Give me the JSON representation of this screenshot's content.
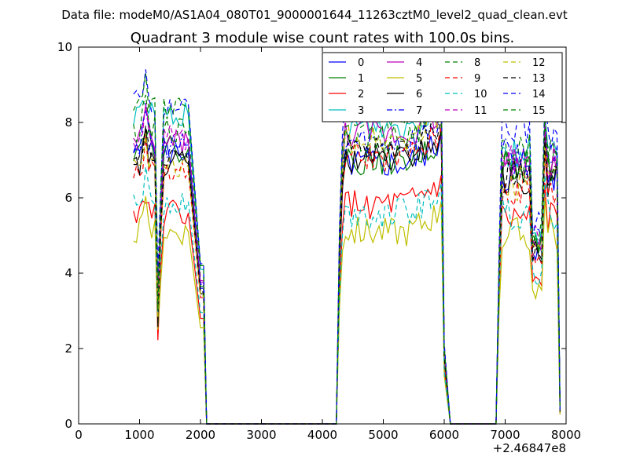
{
  "chart_data": {
    "type": "line",
    "suptitle": "Data file: modeM0/AS1A04_080T01_9000001644_11263cztM0_level2_quad_clean.evt",
    "title": "Quadrant 3 module wise count rates with 100.0s bins.",
    "xlabel": "",
    "ylabel": "",
    "x_offset_label": "+2.46847e8",
    "xlim": [
      0,
      8000
    ],
    "ylim": [
      0,
      10
    ],
    "xticks": [
      "0",
      "1000",
      "2000",
      "3000",
      "4000",
      "5000",
      "6000",
      "7000",
      "8000"
    ],
    "yticks": [
      "0",
      "2",
      "4",
      "6",
      "8",
      "10"
    ],
    "legend_position": "top-right",
    "segments": [
      {
        "start": 900,
        "end": 2100
      },
      {
        "start": 4230,
        "end": 6000
      },
      {
        "start": 6850,
        "end": 7900
      }
    ],
    "series": [
      {
        "name": "0",
        "color": "#0000ff",
        "dash": "solid",
        "levels": [
          7.2,
          6.9,
          6.6
        ]
      },
      {
        "name": "1",
        "color": "#008000",
        "dash": "solid",
        "levels": [
          7.3,
          7.0,
          6.8
        ]
      },
      {
        "name": "2",
        "color": "#ff0000",
        "dash": "solid",
        "levels": [
          5.6,
          5.8,
          5.4
        ]
      },
      {
        "name": "3",
        "color": "#00bfbf",
        "dash": "solid",
        "levels": [
          8.2,
          7.9,
          7.2
        ]
      },
      {
        "name": "4",
        "color": "#bf00bf",
        "dash": "solid",
        "levels": [
          7.5,
          7.7,
          6.9
        ]
      },
      {
        "name": "5",
        "color": "#bfbf00",
        "dash": "solid",
        "levels": [
          5.1,
          5.1,
          5.0
        ]
      },
      {
        "name": "6",
        "color": "#000000",
        "dash": "solid",
        "levels": [
          6.9,
          7.0,
          6.5
        ]
      },
      {
        "name": "7",
        "color": "#0000ff",
        "dash": "dashdot",
        "levels": [
          7.4,
          7.5,
          7.1
        ]
      },
      {
        "name": "8",
        "color": "#008000",
        "dash": "dashed",
        "levels": [
          7.8,
          7.6,
          6.9
        ]
      },
      {
        "name": "9",
        "color": "#ff0000",
        "dash": "dashed",
        "levels": [
          6.7,
          7.1,
          6.2
        ]
      },
      {
        "name": "10",
        "color": "#00bfbf",
        "dash": "dashed",
        "levels": [
          5.9,
          5.6,
          5.6
        ]
      },
      {
        "name": "11",
        "color": "#bf00bf",
        "dash": "dashed",
        "levels": [
          7.6,
          8.3,
          7.0
        ]
      },
      {
        "name": "12",
        "color": "#bfbf00",
        "dash": "dashed",
        "levels": [
          6.8,
          7.6,
          6.4
        ]
      },
      {
        "name": "13",
        "color": "#000000",
        "dash": "dashed",
        "levels": [
          7.0,
          7.3,
          6.6
        ]
      },
      {
        "name": "14",
        "color": "#0000ff",
        "dash": "dashed",
        "levels": [
          8.5,
          8.6,
          7.7
        ]
      },
      {
        "name": "15",
        "color": "#008000",
        "dash": "dashed",
        "levels": [
          8.4,
          8.2,
          7.3
        ]
      }
    ]
  }
}
